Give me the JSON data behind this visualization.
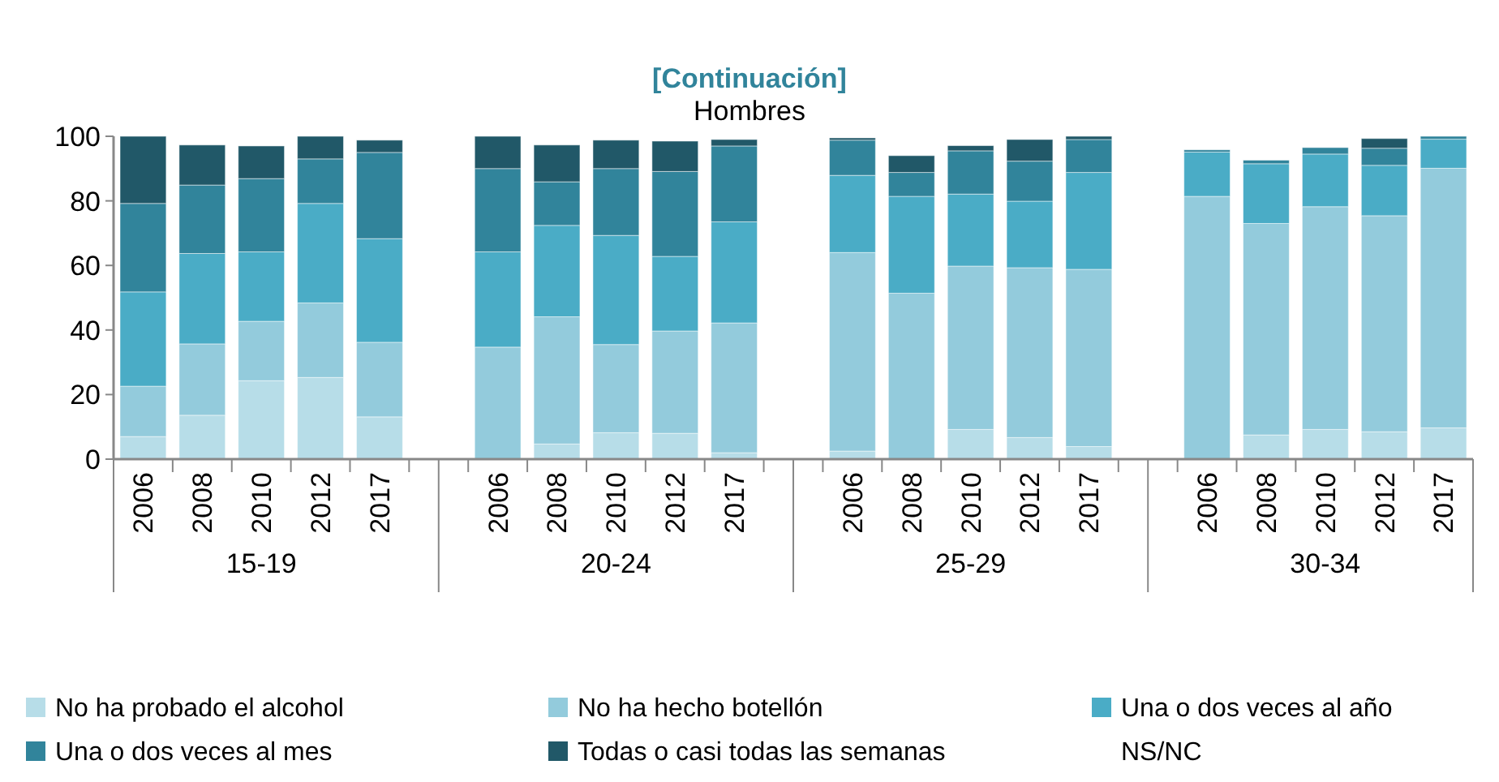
{
  "chart_data": {
    "type": "bar",
    "title": "[Continuación]",
    "subtitle": "Hombres",
    "stacked": true,
    "legend": "bottom",
    "ylim": [
      0,
      100
    ],
    "yticks": [
      0,
      20,
      40,
      60,
      80,
      100
    ],
    "categories": [
      "2006",
      "2008",
      "2010",
      "2012",
      "2017",
      null,
      "2006",
      "2008",
      "2010",
      "2012",
      "2017",
      null,
      "2006",
      "2008",
      "2010",
      "2012",
      "2017",
      null,
      "2006",
      "2008",
      "2010",
      "2012",
      "2017"
    ],
    "annotations": [
      "15-19",
      "20-24",
      "25-29",
      "30-34",
      "NS/NC"
    ],
    "series": [
      {
        "name": "No ha probado el alcohol",
        "color": "#b7dde8",
        "values": [
          7.0,
          13.6,
          24.3,
          25.3,
          13.1,
          null,
          0,
          4.7,
          8.2,
          8.0,
          2.0,
          null,
          2.5,
          0,
          9.2,
          6.7,
          3.9,
          null,
          0,
          7.5,
          9.2,
          8.5,
          9.7
        ]
      },
      {
        "name": "No ha hecho botellón",
        "color": "#93cbdc",
        "values": [
          15.6,
          22.1,
          18.4,
          23.1,
          23.1,
          null,
          34.7,
          39.4,
          27.3,
          31.7,
          40.2,
          null,
          61.5,
          51.4,
          50.6,
          52.6,
          54.9,
          null,
          81.4,
          65.5,
          69.0,
          66.9,
          80.4
        ]
      },
      {
        "name": "Una o dos veces al año",
        "color": "#4aacc6",
        "values": [
          29.2,
          28.0,
          21.5,
          30.8,
          32.1,
          null,
          29.5,
          28.3,
          33.8,
          23.1,
          31.3,
          null,
          23.9,
          30.0,
          22.3,
          20.6,
          30.0,
          null,
          13.7,
          18.5,
          16.3,
          15.6,
          9.0
        ]
      },
      {
        "name": "Una o dos veces al mes",
        "color": "#31849b",
        "values": [
          27.4,
          21.2,
          22.7,
          13.8,
          26.7,
          null,
          25.8,
          13.5,
          20.7,
          26.3,
          23.5,
          null,
          10.9,
          7.4,
          13.4,
          12.4,
          10.2,
          null,
          0.7,
          1.1,
          2.0,
          5.3,
          0.9
        ]
      },
      {
        "name": "Todas o casi todas las semanas",
        "color": "#215868",
        "values": [
          20.8,
          12.4,
          10.1,
          7.0,
          3.8,
          null,
          10.0,
          11.4,
          8.8,
          9.4,
          2.0,
          null,
          0.7,
          5.2,
          1.6,
          6.7,
          1.0,
          null,
          0,
          0,
          0,
          3.0,
          0
        ]
      }
    ]
  }
}
